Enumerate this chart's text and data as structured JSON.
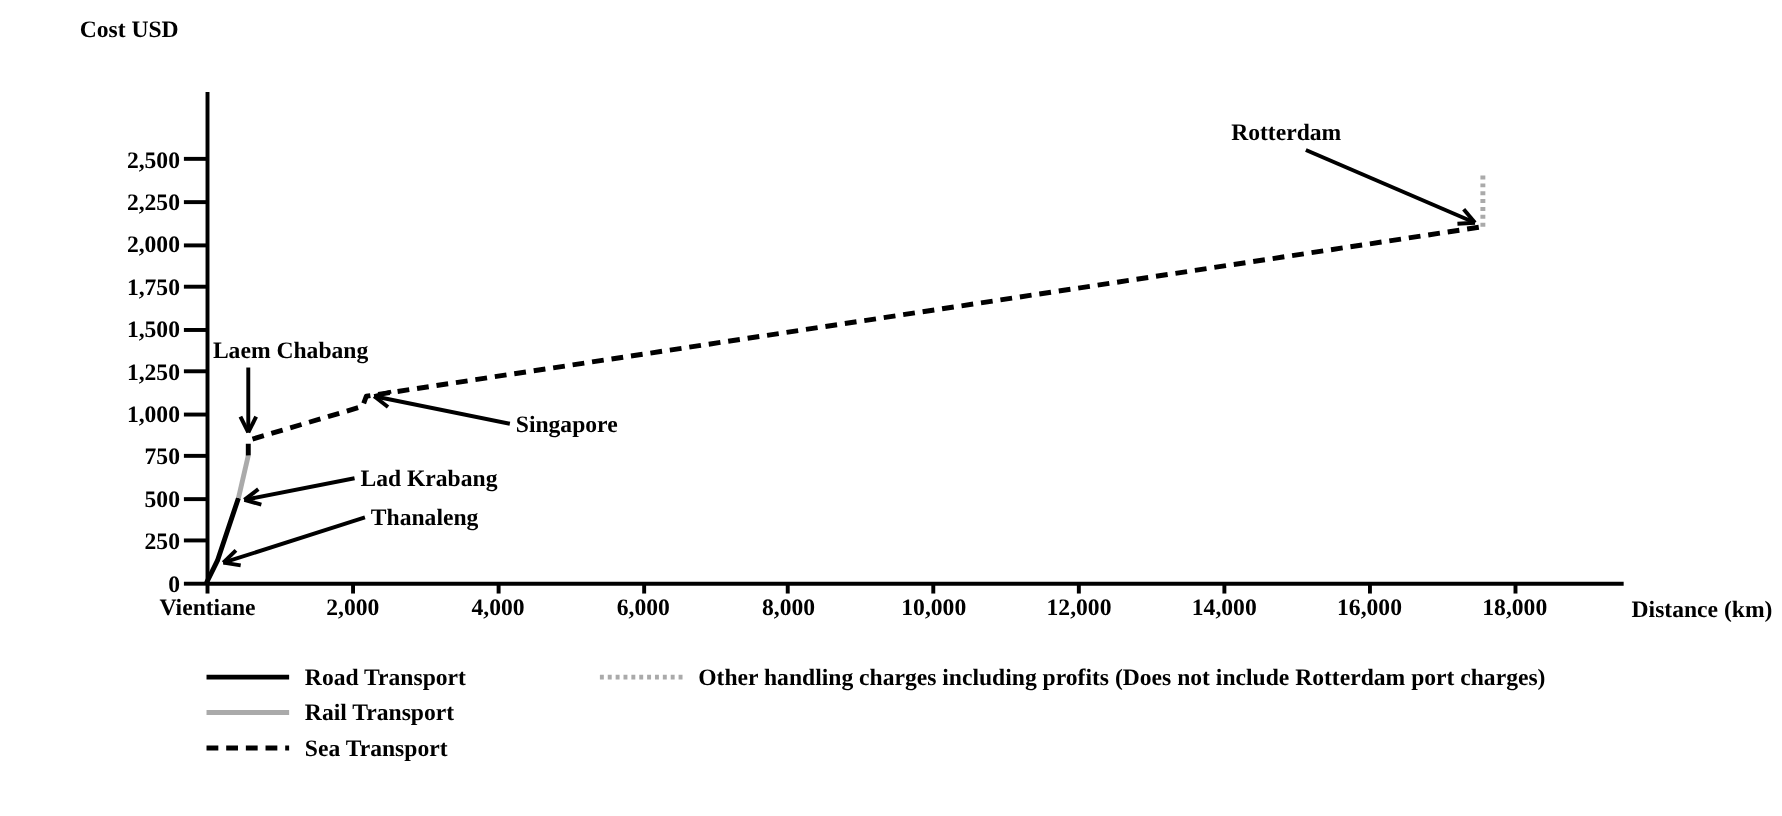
{
  "chart_data": {
    "type": "line",
    "xlabel": "Distance (km)",
    "ylabel": "Cost USD",
    "xlim": [
      0,
      19500
    ],
    "ylim": [
      0,
      2900
    ],
    "xticks": [
      {
        "value": 0,
        "label": "Vientiane"
      },
      {
        "value": 2000,
        "label": "2,000"
      },
      {
        "value": 4000,
        "label": "4,000"
      },
      {
        "value": 6000,
        "label": "6,000"
      },
      {
        "value": 8000,
        "label": "8,000"
      },
      {
        "value": 10000,
        "label": "10,000"
      },
      {
        "value": 12000,
        "label": "12,000"
      },
      {
        "value": 14000,
        "label": "14,000"
      },
      {
        "value": 16000,
        "label": "16,000"
      },
      {
        "value": 18000,
        "label": "18,000"
      }
    ],
    "yticks": [
      0,
      250,
      500,
      750,
      {
        "value": 1000,
        "label": "1,000"
      },
      {
        "value": 1250,
        "label": "1,250"
      },
      {
        "value": 1500,
        "label": "1,500"
      },
      {
        "value": 1750,
        "label": "1,750"
      },
      {
        "value": 2000,
        "label": "2,000"
      },
      {
        "value": 2250,
        "label": "2,250"
      },
      {
        "value": 2500,
        "label": "2,500"
      }
    ],
    "grid": false,
    "legend": "bottom",
    "marker": "none",
    "series": [
      {
        "name": "Road Transport",
        "color": "#000000",
        "line_style": "solid",
        "x": [
          0,
          150,
          440
        ],
        "values": [
          0,
          130,
          500
        ]
      },
      {
        "name": "Rail Transport",
        "color": "#aaaaaa",
        "line_style": "solid",
        "x": [
          440,
          575
        ],
        "values": [
          500,
          750
        ]
      },
      {
        "name": "Sea Transport",
        "color": "#000000",
        "line_style": "dashed",
        "x": [
          575,
          575,
          2150,
          2200,
          17575
        ],
        "values": [
          750,
          840,
          1040,
          1100,
          2100
        ]
      },
      {
        "name": "Other handling charges including profits (Does not include Rotterdam port charges)",
        "color": "#aaaaaa",
        "line_style": "dotted",
        "x": [
          17575,
          17575
        ],
        "values": [
          2100,
          2410
        ]
      }
    ],
    "annotations": [
      {
        "text": "Thanaleng",
        "x": 150,
        "y": 130
      },
      {
        "text": "Lad Krabang",
        "x": 440,
        "y": 500
      },
      {
        "text": "Laem Chabang",
        "x": 575,
        "y": 840
      },
      {
        "text": "Singapore",
        "x": 2200,
        "y": 1100
      },
      {
        "text": "Rotterdam",
        "x": 17575,
        "y": 2100
      }
    ]
  }
}
